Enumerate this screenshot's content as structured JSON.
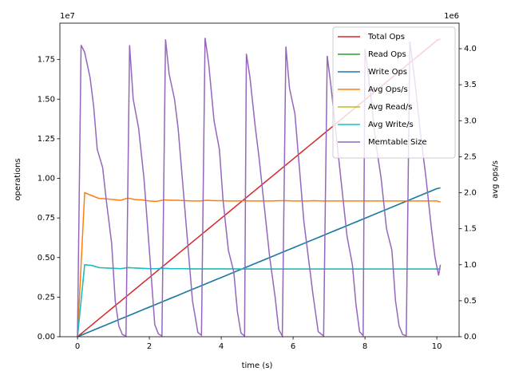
{
  "chart_data": {
    "type": "line",
    "xlabel": "time (s)",
    "ylabel": "operations",
    "y2label": "avg ops/s",
    "y_offset_label": "1e7",
    "y2_offset_label": "1e6",
    "xlim": [
      -0.49,
      10.62
    ],
    "ylim": [
      0,
      19800000
    ],
    "y2lim": [
      0,
      4355000
    ],
    "xticks": [
      0,
      2,
      4,
      6,
      8,
      10
    ],
    "yticks": [
      {
        "value": 0,
        "label": "0.00"
      },
      {
        "value": 2500000,
        "label": "0.25"
      },
      {
        "value": 5000000,
        "label": "0.50"
      },
      {
        "value": 7500000,
        "label": "0.75"
      },
      {
        "value": 10000000,
        "label": "1.00"
      },
      {
        "value": 12500000,
        "label": "1.25"
      },
      {
        "value": 15000000,
        "label": "1.50"
      },
      {
        "value": 17500000,
        "label": "1.75"
      }
    ],
    "y2ticks": [
      {
        "value": 0,
        "label": "0.0"
      },
      {
        "value": 500000,
        "label": "0.5"
      },
      {
        "value": 1000000,
        "label": "1.0"
      },
      {
        "value": 1500000,
        "label": "1.5"
      },
      {
        "value": 2000000,
        "label": "2.0"
      },
      {
        "value": 2500000,
        "label": "2.5"
      },
      {
        "value": 3000000,
        "label": "3.0"
      },
      {
        "value": 3500000,
        "label": "3.5"
      },
      {
        "value": 4000000,
        "label": "4.0"
      }
    ],
    "legend": "upper right",
    "x": [
      0,
      0.2,
      0.4,
      0.6,
      0.8,
      1,
      1.2,
      1.4,
      1.6,
      1.8,
      2,
      2.2,
      2.4,
      2.6,
      2.8,
      3,
      3.2,
      3.4,
      3.6,
      3.8,
      4,
      4.2,
      4.4,
      4.6,
      4.8,
      5,
      5.2,
      5.4,
      5.6,
      5.8,
      6,
      6.2,
      6.4,
      6.6,
      6.8,
      7,
      7.2,
      7.4,
      7.6,
      7.8,
      8,
      8.2,
      8.4,
      8.6,
      8.8,
      9,
      9.2,
      9.4,
      9.6,
      9.8,
      10,
      10.1
    ],
    "series": [
      {
        "name": "Total Ops",
        "color": "#d62728",
        "axis": "y",
        "values": [
          0,
          374000,
          748000,
          1122000,
          1496000,
          1870000,
          2244000,
          2618000,
          2992000,
          3366000,
          3740000,
          4114000,
          4488000,
          4862000,
          5236000,
          5610000,
          5984000,
          6358000,
          6732000,
          7106000,
          7480000,
          7854000,
          8228000,
          8602000,
          8976000,
          9350000,
          9724000,
          10098000,
          10472000,
          10846000,
          11220000,
          11594000,
          11968000,
          12342000,
          12716000,
          13090000,
          13464000,
          13838000,
          14212000,
          14586000,
          14960000,
          15334000,
          15708000,
          16082000,
          16456000,
          16830000,
          17204000,
          17578000,
          17952000,
          18326000,
          18700000,
          18800000
        ]
      },
      {
        "name": "Read Ops",
        "color": "#2ca02c",
        "axis": "y",
        "values": [
          0,
          187000,
          374000,
          561000,
          748000,
          935000,
          1122000,
          1309000,
          1496000,
          1683000,
          1870000,
          2057000,
          2244000,
          2431000,
          2618000,
          2805000,
          2992000,
          3179000,
          3366000,
          3553000,
          3740000,
          3927000,
          4114000,
          4301000,
          4488000,
          4675000,
          4862000,
          5049000,
          5236000,
          5423000,
          5610000,
          5797000,
          5984000,
          6171000,
          6358000,
          6545000,
          6732000,
          6919000,
          7106000,
          7293000,
          7480000,
          7667000,
          7854000,
          8041000,
          8228000,
          8415000,
          8602000,
          8789000,
          8976000,
          9163000,
          9350000,
          9400000
        ]
      },
      {
        "name": "Write Ops",
        "color": "#1f77b4",
        "axis": "y",
        "values": [
          0,
          187000,
          374000,
          561000,
          748000,
          935000,
          1122000,
          1309000,
          1496000,
          1683000,
          1870000,
          2057000,
          2244000,
          2431000,
          2618000,
          2805000,
          2992000,
          3179000,
          3366000,
          3553000,
          3740000,
          3927000,
          4114000,
          4301000,
          4488000,
          4675000,
          4862000,
          5049000,
          5236000,
          5423000,
          5610000,
          5797000,
          5984000,
          6171000,
          6358000,
          6545000,
          6732000,
          6919000,
          7106000,
          7293000,
          7480000,
          7667000,
          7854000,
          8041000,
          8228000,
          8415000,
          8602000,
          8789000,
          8976000,
          9163000,
          9350000,
          9400000
        ]
      },
      {
        "name": "Avg Ops/s",
        "color": "#ff7f0e",
        "axis": "y2",
        "values": [
          0,
          2000000,
          1960000,
          1920000,
          1915000,
          1905000,
          1895000,
          1925000,
          1905000,
          1900000,
          1885000,
          1880000,
          1900000,
          1895000,
          1895000,
          1890000,
          1885000,
          1885000,
          1895000,
          1890000,
          1890000,
          1885000,
          1885000,
          1890000,
          1885000,
          1885000,
          1885000,
          1885000,
          1890000,
          1890000,
          1885000,
          1885000,
          1885000,
          1890000,
          1885000,
          1885000,
          1885000,
          1885000,
          1885000,
          1885000,
          1885000,
          1885000,
          1885000,
          1885000,
          1885000,
          1885000,
          1885000,
          1885000,
          1885000,
          1885000,
          1885000,
          1870000
        ]
      },
      {
        "name": "Avg Read/s",
        "color": "#bcbd22",
        "axis": "y2",
        "values": [
          0,
          1000000,
          990000,
          960000,
          955000,
          950000,
          945000,
          960000,
          955000,
          950000,
          945000,
          945000,
          950000,
          945000,
          945000,
          945000,
          942000,
          942000,
          942000,
          942000,
          942000,
          942000,
          942000,
          940000,
          940000,
          940000,
          940000,
          940000,
          940000,
          940000,
          940000,
          940000,
          940000,
          940000,
          940000,
          940000,
          940000,
          940000,
          940000,
          940000,
          940000,
          940000,
          940000,
          940000,
          940000,
          940000,
          940000,
          940000,
          940000,
          940000,
          940000,
          940000
        ]
      },
      {
        "name": "Avg Write/s",
        "color": "#17becf",
        "axis": "y2",
        "values": [
          0,
          1000000,
          990000,
          960000,
          955000,
          950000,
          945000,
          960000,
          955000,
          950000,
          945000,
          945000,
          950000,
          945000,
          945000,
          945000,
          942000,
          942000,
          942000,
          942000,
          942000,
          942000,
          942000,
          940000,
          940000,
          940000,
          940000,
          940000,
          940000,
          940000,
          940000,
          940000,
          940000,
          940000,
          940000,
          940000,
          940000,
          940000,
          940000,
          940000,
          940000,
          940000,
          940000,
          940000,
          940000,
          940000,
          940000,
          940000,
          940000,
          940000,
          940000,
          940000
        ]
      },
      {
        "name": "Memtable Size",
        "color": "#9467bd",
        "axis": "y2",
        "x": [
          0,
          0.1,
          0.2,
          0.35,
          0.45,
          0.55,
          0.7,
          0.8,
          0.95,
          1.05,
          1.15,
          1.25,
          1.35,
          1.45,
          1.55,
          1.7,
          1.85,
          2,
          2.15,
          2.25,
          2.35,
          2.45,
          2.55,
          2.7,
          2.8,
          2.95,
          3.1,
          3.2,
          3.35,
          3.45,
          3.55,
          3.65,
          3.8,
          3.95,
          4.05,
          4.2,
          4.35,
          4.45,
          4.55,
          4.65,
          4.7,
          4.8,
          4.95,
          5.05,
          5.2,
          5.35,
          5.5,
          5.6,
          5.7,
          5.8,
          5.9,
          6.05,
          6.15,
          6.3,
          6.45,
          6.55,
          6.7,
          6.85,
          6.95,
          7.05,
          7.2,
          7.35,
          7.5,
          7.65,
          7.75,
          7.85,
          7.95,
          8,
          8.15,
          8.3,
          8.45,
          8.6,
          8.75,
          8.85,
          8.95,
          9.05,
          9.15,
          9.25,
          9.4,
          9.55,
          9.7,
          9.85,
          9.95,
          10.05,
          10.1
        ],
        "values": [
          0,
          4050000,
          3950000,
          3600000,
          3200000,
          2600000,
          2350000,
          1900000,
          1300000,
          500000,
          150000,
          30000,
          10000,
          4050000,
          3300000,
          2900000,
          2200000,
          1200000,
          170000,
          40000,
          10000,
          4130000,
          3650000,
          3300000,
          2900000,
          2000000,
          1100000,
          500000,
          60000,
          20000,
          4150000,
          3800000,
          3000000,
          2600000,
          1900000,
          1200000,
          900000,
          350000,
          50000,
          10000,
          3930000,
          3600000,
          2900000,
          2500000,
          1800000,
          1100000,
          550000,
          100000,
          10000,
          4030000,
          3450000,
          3100000,
          2500000,
          1600000,
          1000000,
          600000,
          70000,
          10000,
          3900000,
          3500000,
          2800000,
          2100000,
          1400000,
          1000000,
          450000,
          70000,
          15000,
          4000000,
          3400000,
          2700000,
          2200000,
          1500000,
          1200000,
          500000,
          150000,
          30000,
          15000,
          4100000,
          3500000,
          2800000,
          2200000,
          1500000,
          1100000,
          850000,
          1000000
        ]
      }
    ]
  }
}
